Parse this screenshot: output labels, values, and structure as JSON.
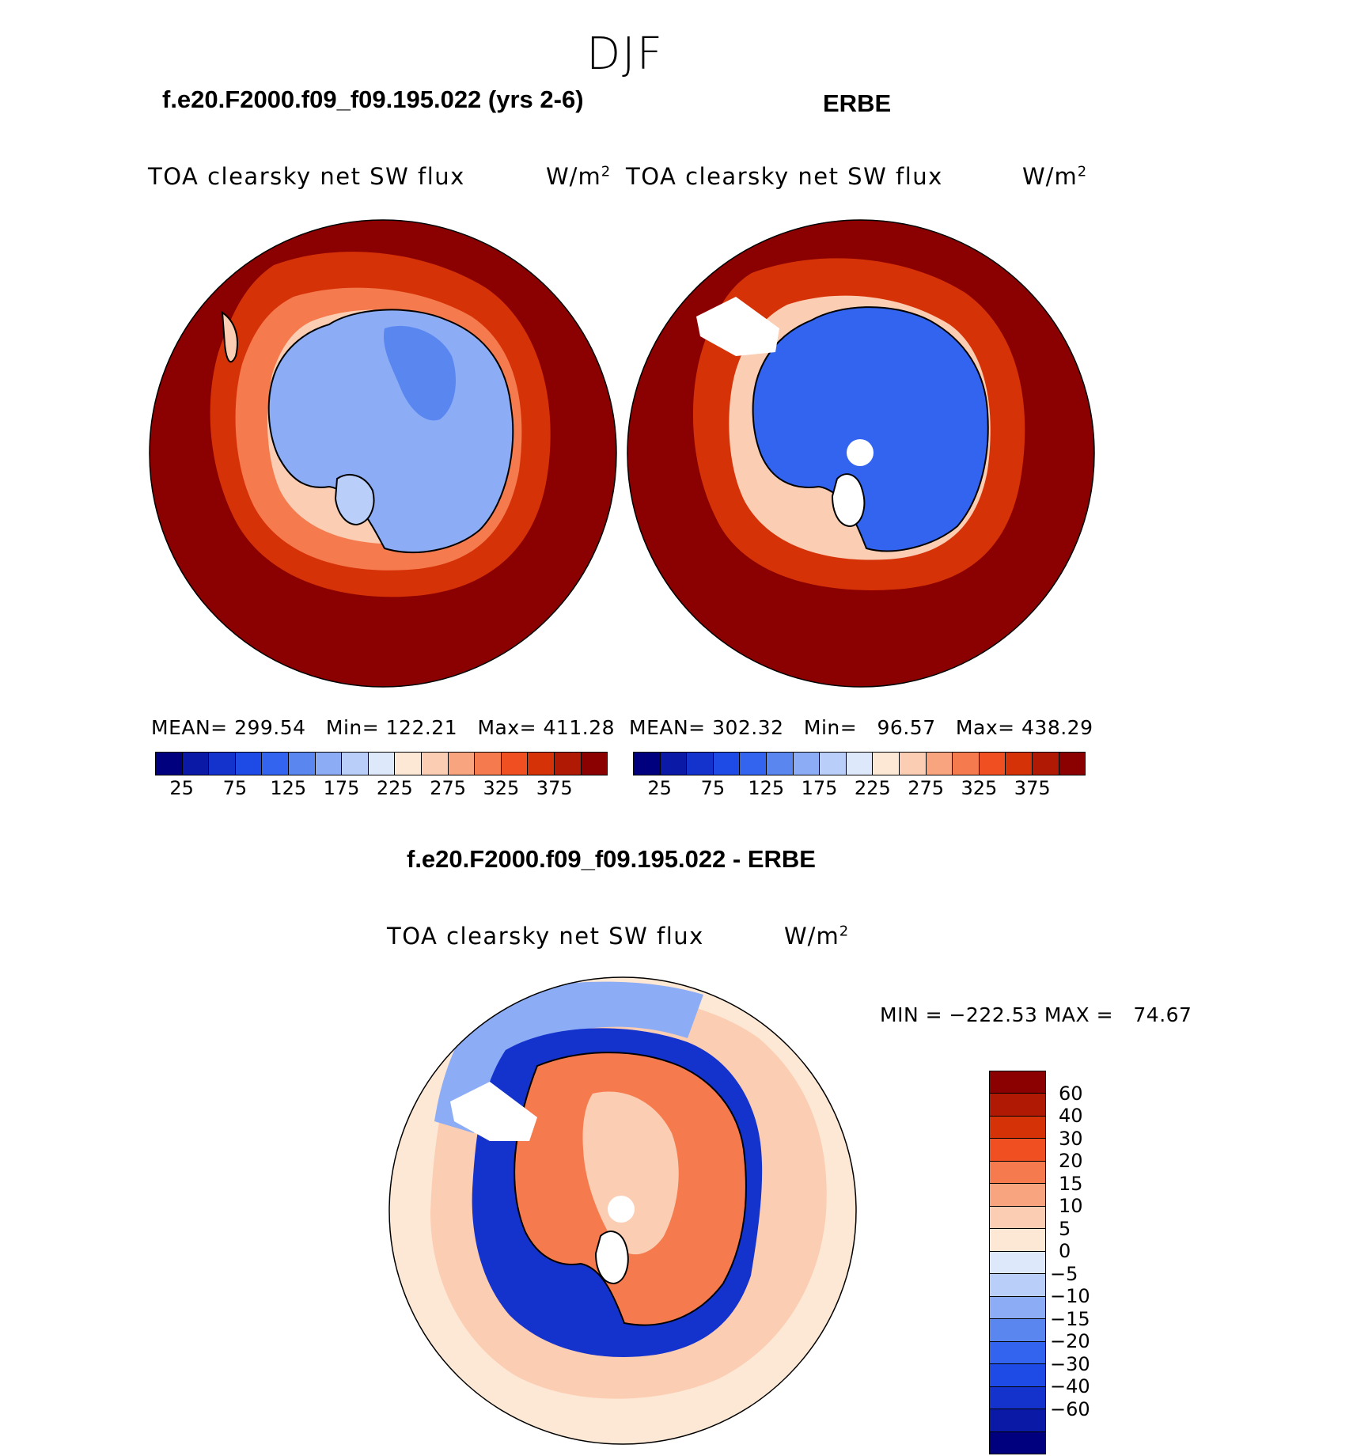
{
  "season": "DJF",
  "panels": {
    "model": {
      "case_title": "f.e20.F2000.f09_f09.195.022 (yrs 2-6)",
      "variable": "TOA clearsky net SW flux",
      "units": "W/m",
      "units_sup": "2",
      "stats": "MEAN= 299.54   Min= 122.21   Max= 411.28"
    },
    "obs": {
      "case_title": "ERBE",
      "variable": "TOA clearsky net SW flux",
      "units": "W/m",
      "units_sup": "2",
      "stats": "MEAN= 302.32   Min=   96.57   Max= 438.29"
    },
    "diff": {
      "case_title": "f.e20.F2000.f09_f09.195.022 - ERBE",
      "variable": "TOA clearsky net SW flux",
      "units": "W/m",
      "units_sup": "2",
      "minmax": "MIN = −222.53 MAX =   74.67"
    }
  },
  "abs_colorbar": {
    "colors": [
      "#00007f",
      "#0a1aa6",
      "#1432cc",
      "#1e4be6",
      "#3264f0",
      "#5a86f0",
      "#8cacf5",
      "#b9cffa",
      "#dde9fb",
      "#fde8d6",
      "#fbcdb2",
      "#f8a47e",
      "#f57a4e",
      "#f04f22",
      "#d63208",
      "#b01a04",
      "#8b0000"
    ],
    "ticks": [
      "25",
      "75",
      "125",
      "175",
      "225",
      "275",
      "325",
      "375"
    ]
  },
  "diff_colorbar": {
    "colors": [
      "#8b0000",
      "#b01a04",
      "#d63208",
      "#f04f22",
      "#f57a4e",
      "#f8a47e",
      "#fbcdb2",
      "#fde8d6",
      "#dde9fb",
      "#b9cffa",
      "#8cacf5",
      "#5a86f0",
      "#3264f0",
      "#1e4be6",
      "#1432cc",
      "#0a1aa6",
      "#00007f"
    ],
    "labels": [
      "60",
      "40",
      "30",
      "20",
      "15",
      "10",
      "5",
      "0",
      "−5",
      "−10",
      "−15",
      "−20",
      "−30",
      "−40",
      "−60"
    ]
  }
}
